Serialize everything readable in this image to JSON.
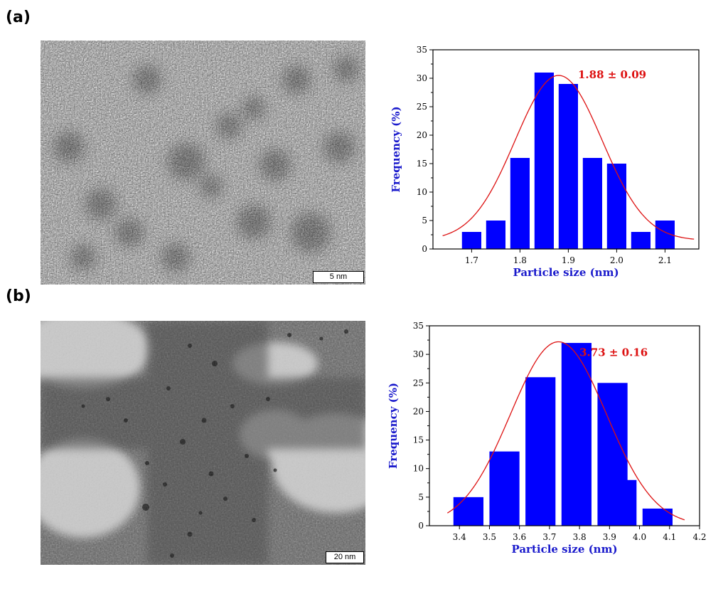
{
  "panels": [
    {
      "label": "(a)",
      "scale_bar": "5 nm",
      "chart_data": {
        "type": "bar",
        "title": "",
        "xlabel": "Particle size (nm)",
        "ylabel": "Frequency (%)",
        "annotation": "1.88 ± 0.09",
        "x": [
          1.7,
          1.75,
          1.8,
          1.85,
          1.9,
          1.95,
          2.0,
          2.05,
          2.1
        ],
        "values": [
          3,
          5,
          16,
          31,
          29,
          16,
          15,
          3,
          5
        ],
        "bar_width": 0.04,
        "xlim": [
          1.62,
          2.17
        ],
        "ylim": [
          0,
          35
        ],
        "xticks": [
          1.7,
          1.8,
          1.9,
          2.0,
          2.1
        ],
        "xtick_labels": [
          "1.7",
          "1.8",
          "1.9",
          "2.0",
          "2.1"
        ],
        "yticks": [
          0,
          5,
          10,
          15,
          20,
          25,
          30,
          35
        ],
        "fit": {
          "type": "gaussian",
          "mean": 1.88,
          "sigma": 0.09,
          "amplitude": 30.5,
          "baseline": 1.5,
          "range": [
            1.64,
            2.16
          ]
        },
        "bar_color": "#0000ff",
        "fit_color": "#dd1111",
        "label_color": "#1a1acc",
        "annotation_color": "#dd1111"
      }
    },
    {
      "label": "(b)",
      "scale_bar": "20 nm",
      "chart_data": {
        "type": "bar",
        "title": "",
        "xlabel": "Particle size (nm)",
        "ylabel": "Frequency (%)",
        "annotation": "3.73 ± 0.16",
        "x": [
          3.43,
          3.55,
          3.67,
          3.79,
          3.91,
          4.03
        ],
        "values": [
          5,
          13,
          26,
          32,
          25,
          8
        ],
        "values_extra": [
          3
        ],
        "bar_width": 0.1,
        "xlim": [
          3.3,
          4.2
        ],
        "ylim": [
          0,
          35
        ],
        "xticks": [
          3.4,
          3.5,
          3.6,
          3.7,
          3.8,
          3.9,
          4.0,
          4.1,
          4.2
        ],
        "xtick_labels": [
          "3.4",
          "3.5",
          "3.6",
          "3.7",
          "3.8",
          "3.9",
          "4.0",
          "4.1",
          "4.2"
        ],
        "yticks": [
          0,
          5,
          10,
          15,
          20,
          25,
          30,
          35
        ],
        "fit": {
          "type": "gaussian",
          "mean": 3.73,
          "sigma": 0.16,
          "amplitude": 32.2,
          "baseline": 0,
          "range": [
            3.36,
            4.15
          ]
        },
        "bar_color": "#0000ff",
        "fit_color": "#dd1111",
        "label_color": "#1a1acc",
        "annotation_color": "#dd1111"
      }
    }
  ]
}
